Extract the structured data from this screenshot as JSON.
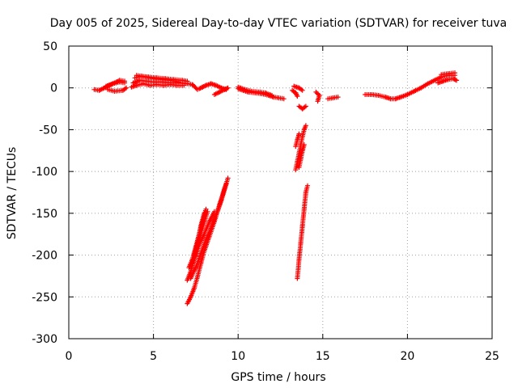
{
  "chart_data": {
    "type": "scatter",
    "title": "Day 005 of 2025, Sidereal Day-to-day VTEC variation (SDTVAR) for receiver tuva",
    "xlabel": "GPS time / hours",
    "ylabel": "SDTVAR / TECUs",
    "xlim": [
      0,
      25
    ],
    "ylim": [
      -300,
      50
    ],
    "xticks": [
      0,
      5,
      10,
      15,
      20,
      25
    ],
    "yticks": [
      -300,
      -250,
      -200,
      -150,
      -100,
      -50,
      0,
      50
    ],
    "grid": true,
    "marker": "plus",
    "color": "#ff0000",
    "segments": [
      [
        [
          1.5,
          -2
        ],
        [
          1.8,
          -3
        ],
        [
          2.1,
          0
        ],
        [
          2.4,
          3
        ],
        [
          2.7,
          6
        ],
        [
          3.0,
          9
        ],
        [
          3.3,
          8
        ]
      ],
      [
        [
          2.3,
          -2
        ],
        [
          2.7,
          -4
        ],
        [
          3.2,
          -3
        ],
        [
          3.4,
          0
        ]
      ],
      [
        [
          2.2,
          2
        ],
        [
          2.6,
          5
        ],
        [
          3.0,
          7
        ],
        [
          3.3,
          6
        ]
      ],
      [
        [
          3.7,
          1
        ],
        [
          4.0,
          3
        ],
        [
          4.4,
          5
        ],
        [
          4.8,
          3
        ],
        [
          5.2,
          4
        ],
        [
          5.6,
          3
        ],
        [
          6.0,
          4
        ],
        [
          6.4,
          3
        ],
        [
          6.8,
          3
        ]
      ],
      [
        [
          3.8,
          6
        ],
        [
          4.2,
          9
        ],
        [
          4.6,
          8
        ],
        [
          5.0,
          7
        ],
        [
          5.5,
          7
        ],
        [
          6.0,
          6
        ],
        [
          6.5,
          6
        ],
        [
          7.0,
          5
        ]
      ],
      [
        [
          3.9,
          12
        ],
        [
          4.3,
          14
        ],
        [
          4.7,
          13
        ],
        [
          5.2,
          12
        ],
        [
          5.7,
          11
        ],
        [
          6.2,
          10
        ],
        [
          6.7,
          9
        ],
        [
          7.0,
          8
        ]
      ],
      [
        [
          4.0,
          15
        ],
        [
          4.5,
          13
        ],
        [
          5.0,
          11
        ],
        [
          5.5,
          10
        ],
        [
          6.0,
          9
        ],
        [
          6.5,
          7
        ]
      ],
      [
        [
          7.0,
          5
        ],
        [
          7.3,
          4
        ],
        [
          7.6,
          -2
        ]
      ],
      [
        [
          7.7,
          -1
        ],
        [
          7.9,
          1
        ],
        [
          8.1,
          3
        ],
        [
          8.4,
          5
        ],
        [
          8.7,
          3
        ],
        [
          9.0,
          0
        ],
        [
          9.3,
          -2
        ]
      ],
      [
        [
          8.6,
          -8
        ],
        [
          8.9,
          -5
        ],
        [
          9.2,
          -2
        ],
        [
          9.4,
          0
        ]
      ],
      [
        [
          10.0,
          -1
        ],
        [
          10.3,
          -3
        ],
        [
          10.6,
          -5
        ],
        [
          11.0,
          -6
        ],
        [
          11.4,
          -7
        ],
        [
          11.8,
          -9
        ],
        [
          12.1,
          -11
        ],
        [
          12.4,
          -12
        ],
        [
          12.7,
          -13
        ]
      ],
      [
        [
          10.0,
          1
        ],
        [
          10.4,
          -2
        ],
        [
          10.8,
          -4
        ],
        [
          11.3,
          -5
        ],
        [
          11.6,
          -6
        ],
        [
          12.0,
          -9
        ]
      ],
      [
        [
          13.2,
          -3
        ],
        [
          13.4,
          -6
        ],
        [
          13.5,
          -10
        ]
      ],
      [
        [
          13.3,
          2
        ],
        [
          13.6,
          0
        ],
        [
          13.8,
          -3
        ]
      ],
      [
        [
          13.6,
          -22
        ],
        [
          13.8,
          -25
        ],
        [
          14.0,
          -22
        ]
      ],
      [
        [
          14.6,
          -5
        ],
        [
          14.8,
          -9
        ],
        [
          14.7,
          -16
        ]
      ],
      [
        [
          15.3,
          -13
        ],
        [
          15.6,
          -12
        ],
        [
          15.9,
          -11
        ]
      ],
      [
        [
          17.5,
          -8
        ],
        [
          17.9,
          -8
        ],
        [
          18.3,
          -9
        ],
        [
          18.7,
          -11
        ],
        [
          19.0,
          -13
        ],
        [
          19.3,
          -13
        ],
        [
          19.6,
          -11
        ],
        [
          20.0,
          -8
        ],
        [
          20.4,
          -4
        ],
        [
          20.8,
          0
        ],
        [
          21.2,
          5
        ],
        [
          21.6,
          9
        ],
        [
          22.0,
          13
        ],
        [
          22.4,
          15
        ],
        [
          22.8,
          15
        ]
      ],
      [
        [
          21.8,
          6
        ],
        [
          22.1,
          8
        ],
        [
          22.4,
          10
        ],
        [
          22.7,
          11
        ],
        [
          22.9,
          9
        ]
      ],
      [
        [
          22.0,
          16
        ],
        [
          22.4,
          17
        ],
        [
          22.8,
          18
        ]
      ],
      [
        [
          7.0,
          -258
        ],
        [
          7.2,
          -250
        ],
        [
          7.4,
          -240
        ],
        [
          7.6,
          -226
        ],
        [
          7.8,
          -210
        ],
        [
          8.0,
          -195
        ],
        [
          8.3,
          -178
        ],
        [
          8.6,
          -160
        ],
        [
          8.9,
          -140
        ],
        [
          9.2,
          -120
        ],
        [
          9.4,
          -108
        ]
      ],
      [
        [
          7.0,
          -230
        ],
        [
          7.2,
          -220
        ],
        [
          7.4,
          -205
        ],
        [
          7.6,
          -190
        ],
        [
          7.8,
          -175
        ],
        [
          8.0,
          -160
        ],
        [
          8.2,
          -148
        ]
      ],
      [
        [
          7.1,
          -215
        ],
        [
          7.3,
          -205
        ],
        [
          7.5,
          -190
        ],
        [
          7.7,
          -175
        ],
        [
          7.9,
          -160
        ],
        [
          8.1,
          -145
        ]
      ],
      [
        [
          7.3,
          -210
        ],
        [
          7.5,
          -200
        ],
        [
          7.7,
          -188
        ],
        [
          8.0,
          -175
        ],
        [
          8.3,
          -160
        ],
        [
          8.6,
          -148
        ]
      ],
      [
        [
          7.2,
          -228
        ],
        [
          7.5,
          -215
        ],
        [
          7.8,
          -198
        ],
        [
          8.1,
          -182
        ],
        [
          8.4,
          -168
        ],
        [
          8.7,
          -152
        ],
        [
          9.0,
          -135
        ],
        [
          9.3,
          -115
        ]
      ],
      [
        [
          7.4,
          -200
        ],
        [
          7.6,
          -185
        ],
        [
          7.8,
          -165
        ],
        [
          8.0,
          -150
        ]
      ],
      [
        [
          13.4,
          -98
        ],
        [
          13.5,
          -88
        ],
        [
          13.6,
          -78
        ],
        [
          13.7,
          -68
        ],
        [
          13.8,
          -58
        ],
        [
          13.9,
          -50
        ],
        [
          14.0,
          -45
        ]
      ],
      [
        [
          13.6,
          -95
        ],
        [
          13.7,
          -85
        ],
        [
          13.8,
          -75
        ],
        [
          13.9,
          -68
        ]
      ],
      [
        [
          13.4,
          -70
        ],
        [
          13.5,
          -62
        ],
        [
          13.6,
          -55
        ]
      ],
      [
        [
          13.5,
          -228
        ],
        [
          13.6,
          -205
        ],
        [
          13.7,
          -185
        ],
        [
          13.8,
          -165
        ],
        [
          13.9,
          -145
        ],
        [
          14.0,
          -125
        ],
        [
          14.1,
          -117
        ]
      ]
    ]
  }
}
